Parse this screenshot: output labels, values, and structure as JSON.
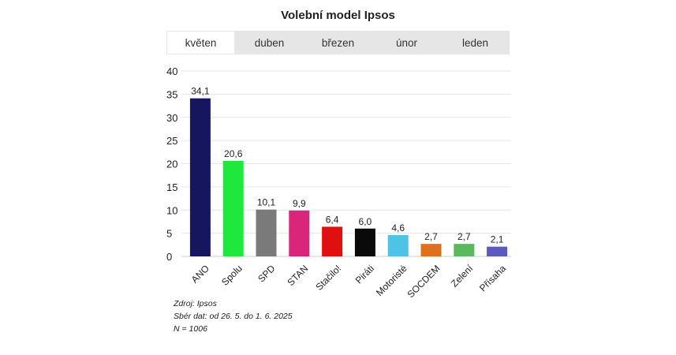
{
  "title": "Volební model Ipsos",
  "tabs": [
    "květen",
    "duben",
    "březen",
    "únor",
    "leden"
  ],
  "active_tab": 0,
  "source": {
    "line1": "Zdroj: Ipsos",
    "line2": "Sbér dat: od 26. 5. do 1. 6. 2025",
    "line3": "N = 1006"
  },
  "chart_data": {
    "type": "bar",
    "title": "Volební model Ipsos",
    "categories": [
      "ANO",
      "Spolu",
      "SPD",
      "STAN",
      "Stačilo!",
      "Piráti",
      "Motoristé",
      "SOCDEM",
      "Zelení",
      "Přísaha"
    ],
    "values": [
      34.1,
      20.6,
      10.1,
      9.9,
      6.4,
      6.0,
      4.6,
      2.7,
      2.7,
      2.1
    ],
    "value_labels": [
      "34,1",
      "20,6",
      "10,1",
      "9,9",
      "6,4",
      "6,0",
      "4,6",
      "2,7",
      "2,7",
      "2,1"
    ],
    "colors": [
      "#16165e",
      "#1ee83a",
      "#7a7a7a",
      "#d9267a",
      "#e01010",
      "#0a0a0a",
      "#4ec3e6",
      "#e0701c",
      "#5cb85c",
      "#5a5abf"
    ],
    "ylim": [
      0,
      40
    ],
    "yticks": [
      0,
      5,
      10,
      15,
      20,
      25,
      30,
      35,
      40
    ],
    "grid": true,
    "xlabel": "",
    "ylabel": ""
  }
}
